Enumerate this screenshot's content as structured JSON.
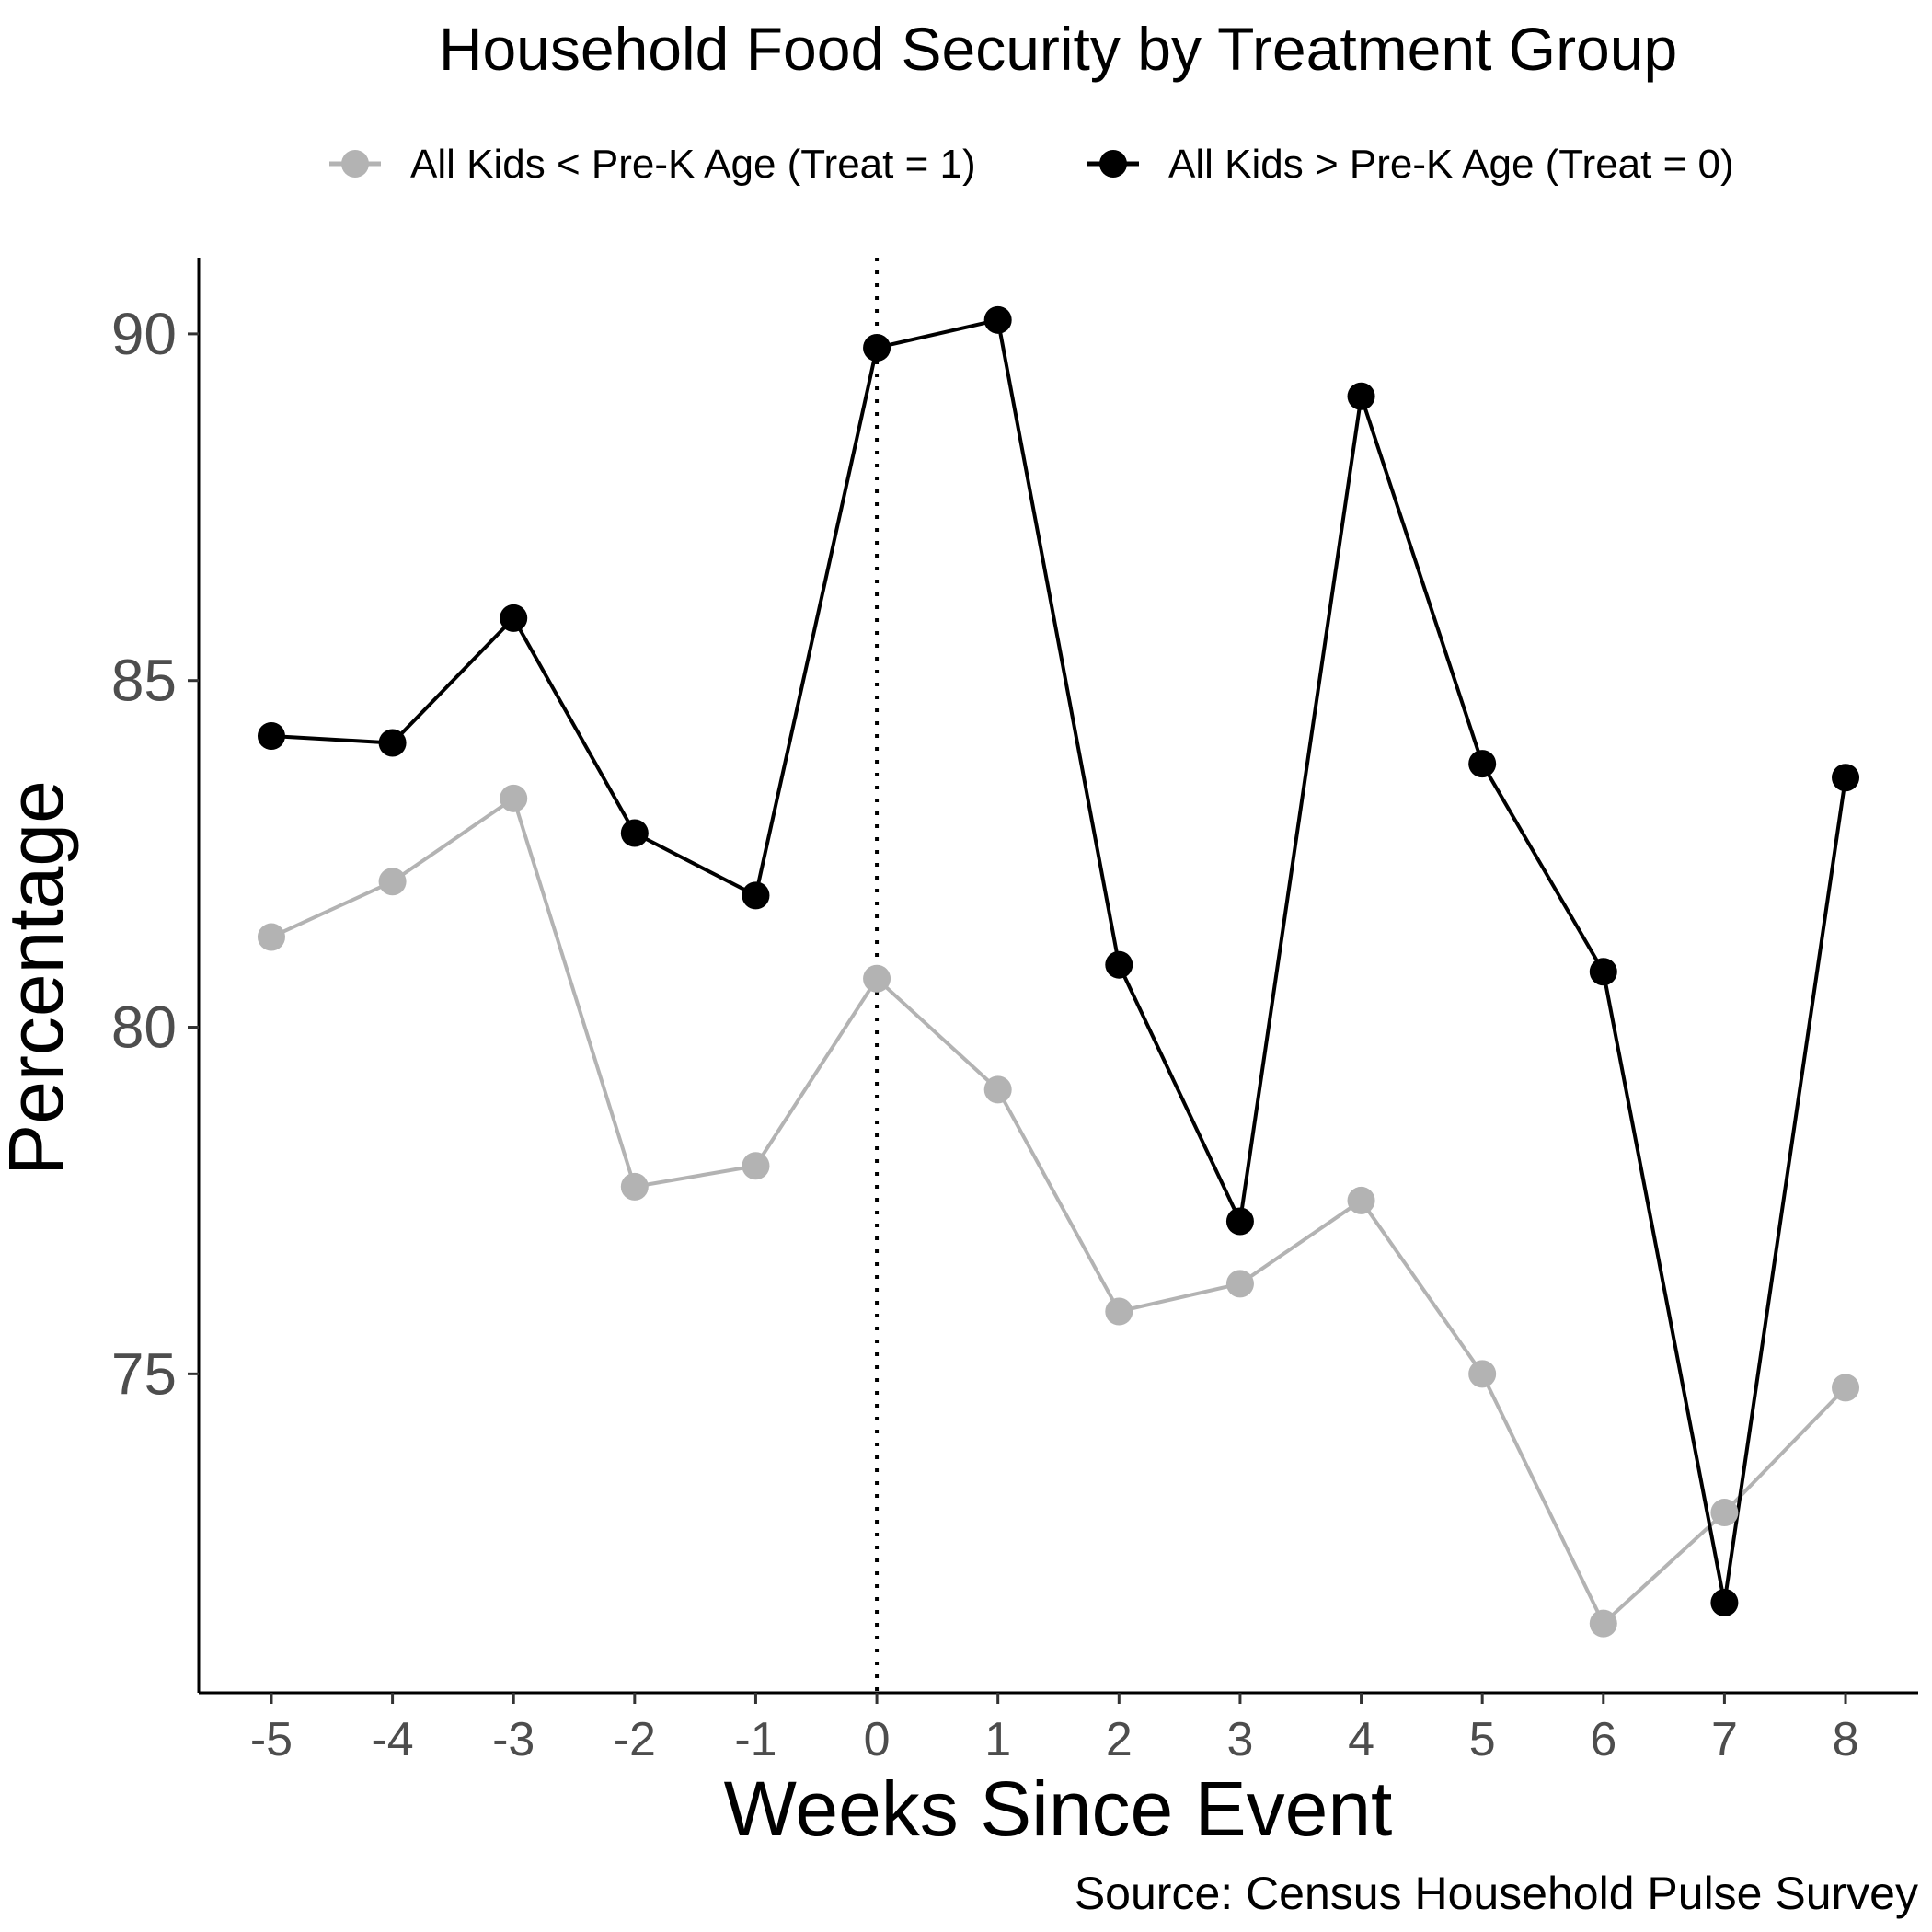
{
  "chart_data": {
    "type": "line",
    "title": "Household Food Security by Treatment Group",
    "xlabel": "Weeks Since Event",
    "ylabel": "Percentage",
    "caption": "Source: Census Household Pulse Survey",
    "x": [
      -5,
      -4,
      -3,
      -2,
      -1,
      0,
      1,
      2,
      3,
      4,
      5,
      6,
      7,
      8
    ],
    "x_tick_labels": [
      "-5",
      "-4",
      "-3",
      "-2",
      "-1",
      "0",
      "1",
      "2",
      "3",
      "4",
      "5",
      "6",
      "7",
      "8"
    ],
    "y_ticks": [
      75,
      80,
      85,
      90
    ],
    "y_tick_labels": [
      "75",
      "80",
      "85",
      "90"
    ],
    "xlim": [
      -5.6,
      8.6
    ],
    "ylim": [
      70.4,
      91.1
    ],
    "grid": false,
    "legend_position": "top",
    "reference_line": {
      "x": 0,
      "style": "dotted"
    },
    "series": [
      {
        "name": "All Kids < Pre-K Age (Treat = 1)",
        "color": "#b3b3b3",
        "values": [
          81.3,
          82.1,
          83.3,
          77.7,
          78.0,
          80.7,
          79.1,
          75.9,
          76.3,
          77.5,
          75.0,
          71.4,
          73.0,
          74.8
        ]
      },
      {
        "name": "All Kids > Pre-K Age (Treat = 0)",
        "color": "#000000",
        "values": [
          84.2,
          84.1,
          85.9,
          82.8,
          81.9,
          89.8,
          90.2,
          80.9,
          77.2,
          89.1,
          83.8,
          80.8,
          71.7,
          83.6
        ]
      }
    ]
  }
}
